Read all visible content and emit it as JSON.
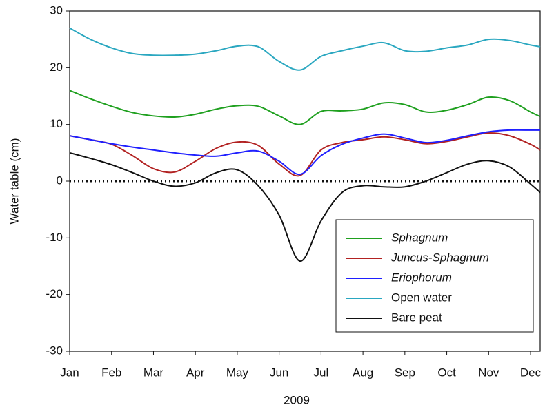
{
  "chart_data": {
    "type": "line",
    "x_label": "2009",
    "y_label": "Water table (cm)",
    "x": [
      0,
      0.5,
      1,
      1.5,
      2,
      2.5,
      3,
      3.5,
      4,
      4.5,
      5,
      5.5,
      6,
      6.5,
      7,
      7.5,
      8,
      8.5,
      9,
      9.5,
      10,
      10.5,
      11,
      11.23
    ],
    "xlim": [
      0,
      11.23
    ],
    "xticks": [
      {
        "value": 0,
        "label": "Jan"
      },
      {
        "value": 1,
        "label": "Feb"
      },
      {
        "value": 2,
        "label": "Mar"
      },
      {
        "value": 3,
        "label": "Apr"
      },
      {
        "value": 4,
        "label": "May"
      },
      {
        "value": 5,
        "label": "Jun"
      },
      {
        "value": 6,
        "label": "Jul"
      },
      {
        "value": 7,
        "label": "Aug"
      },
      {
        "value": 8,
        "label": "Sep"
      },
      {
        "value": 9,
        "label": "Oct"
      },
      {
        "value": 10,
        "label": "Nov"
      },
      {
        "value": 11,
        "label": "Dec"
      }
    ],
    "ylim": [
      -30,
      30
    ],
    "yticks": [
      -30,
      -20,
      -10,
      0,
      10,
      20,
      30
    ],
    "hline": 0,
    "series": [
      {
        "name": "Sphagnum",
        "italic": true,
        "color": "#1fa01f",
        "values": [
          16,
          14.5,
          13.2,
          12.1,
          11.5,
          11.3,
          11.8,
          12.7,
          13.3,
          13.2,
          11.5,
          10,
          12.3,
          12.4,
          12.7,
          13.8,
          13.5,
          12.2,
          12.5,
          13.5,
          14.8,
          14.2,
          12.2,
          11.4
        ]
      },
      {
        "name": "Juncus-Sphagnum",
        "italic": true,
        "color": "#b22222",
        "values": [
          8,
          7.3,
          6.5,
          4.5,
          2.2,
          1.6,
          3.5,
          5.8,
          6.9,
          6.3,
          3,
          1,
          5.5,
          6.8,
          7.3,
          7.8,
          7.3,
          6.6,
          7,
          7.8,
          8.5,
          8,
          6.5,
          5.5
        ]
      },
      {
        "name": "Eriophorum",
        "italic": true,
        "color": "#1f1fff",
        "values": [
          8,
          7.3,
          6.6,
          6,
          5.5,
          5,
          4.6,
          4.4,
          5,
          5.3,
          3.5,
          1.2,
          4.5,
          6.5,
          7.6,
          8.3,
          7.6,
          6.8,
          7.2,
          8,
          8.7,
          9,
          9,
          9
        ]
      },
      {
        "name": "Open water",
        "italic": false,
        "color": "#2aa7c0",
        "values": [
          27,
          25,
          23.5,
          22.5,
          22.2,
          22.2,
          22.4,
          23,
          23.8,
          23.7,
          21.1,
          19.6,
          22,
          23,
          23.8,
          24.4,
          23,
          22.9,
          23.5,
          24,
          25,
          24.8,
          24,
          23.7
        ]
      },
      {
        "name": "Bare peat",
        "italic": false,
        "color": "#111111",
        "values": [
          5,
          4,
          2.9,
          1.5,
          0,
          -0.9,
          -0.3,
          1.5,
          2,
          -0.8,
          -6,
          -14.1,
          -7,
          -2,
          -0.8,
          -1,
          -1,
          0,
          1.5,
          3,
          3.6,
          2.5,
          -0.5,
          -2
        ]
      }
    ]
  }
}
